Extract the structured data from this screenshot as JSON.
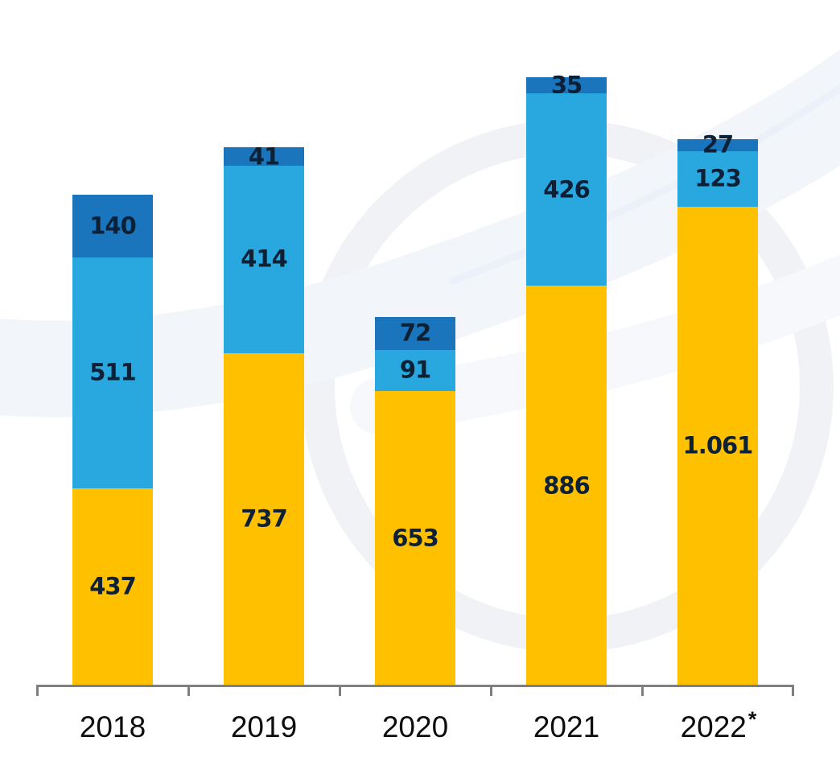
{
  "page": {
    "background_color": "#ffffff"
  },
  "chart_data": {
    "type": "bar",
    "stacked": true,
    "title": "",
    "xlabel": "",
    "ylabel": "",
    "legend_position": "none",
    "grid": false,
    "value_label_color": "#0c2036",
    "category_label_color": "#0d0d0d",
    "axis_color": "#7f7f7f",
    "categories": [
      {
        "label": "2018",
        "marker": ""
      },
      {
        "label": "2019",
        "marker": ""
      },
      {
        "label": "2020",
        "marker": ""
      },
      {
        "label": "2021",
        "marker": ""
      },
      {
        "label": "2022",
        "marker": "*"
      }
    ],
    "series": [
      {
        "name": "bottom-segment",
        "color": "#FFC000",
        "values": [
          437,
          737,
          653,
          886,
          1061
        ],
        "labels": [
          "437",
          "737",
          "653",
          "886",
          "1.061"
        ]
      },
      {
        "name": "middle-segment",
        "color": "#29A8E0",
        "values": [
          511,
          414,
          91,
          426,
          123
        ],
        "labels": [
          "511",
          "414",
          "91",
          "426",
          "123"
        ]
      },
      {
        "name": "top-segment",
        "color": "#1B75BC",
        "values": [
          140,
          41,
          72,
          35,
          27
        ],
        "labels": [
          "140",
          "41",
          "72",
          "35",
          "27"
        ]
      }
    ]
  }
}
